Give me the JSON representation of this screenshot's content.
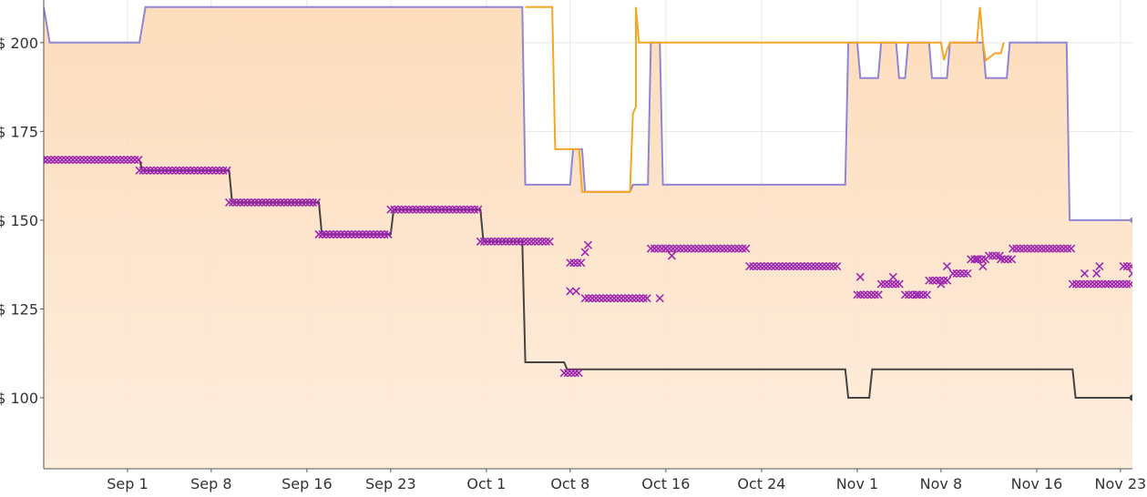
{
  "chart_data": {
    "type": "line",
    "title": "",
    "xlabel": "",
    "ylabel": "",
    "x_range": [
      "2023-08-25",
      "2023-11-24"
    ],
    "ylim": [
      80,
      212
    ],
    "grid": true,
    "x_ticks": [
      {
        "date": "2023-09-01",
        "label": "Sep 1"
      },
      {
        "date": "2023-09-08",
        "label": "Sep 8"
      },
      {
        "date": "2023-09-16",
        "label": "Sep 16"
      },
      {
        "date": "2023-09-23",
        "label": "Sep 23"
      },
      {
        "date": "2023-10-01",
        "label": "Oct 1"
      },
      {
        "date": "2023-10-08",
        "label": "Oct 8"
      },
      {
        "date": "2023-10-16",
        "label": "Oct 16"
      },
      {
        "date": "2023-10-24",
        "label": "Oct 24"
      },
      {
        "date": "2023-11-01",
        "label": "Nov 1"
      },
      {
        "date": "2023-11-08",
        "label": "Nov 8"
      },
      {
        "date": "2023-11-16",
        "label": "Nov 16"
      },
      {
        "date": "2023-11-23",
        "label": "Nov 23"
      }
    ],
    "y_ticks": [
      {
        "value": 100,
        "label": "$ 100"
      },
      {
        "value": 125,
        "label": "$ 125"
      },
      {
        "value": 150,
        "label": "$ 150"
      },
      {
        "value": 175,
        "label": "$ 175"
      },
      {
        "value": 200,
        "label": "$ 200"
      }
    ],
    "colors": {
      "area_fill_top": "#fdd9b5",
      "area_fill_bottom": "#fdebd9",
      "area_line": "#8f86d6",
      "orange_line": "#f5a623",
      "dark_line": "#444444",
      "markers": "#9c27b0",
      "grid": "#e6e6e6"
    },
    "series": [
      {
        "kind": "area-step",
        "points": [
          [
            "2023-08-25",
            210
          ],
          [
            "2023-08-25 12:00",
            200
          ],
          [
            "2023-09-02",
            200
          ],
          [
            "2023-09-02 12:00",
            210
          ],
          [
            "2023-10-04",
            210
          ],
          [
            "2023-10-04 06:00",
            160
          ],
          [
            "2023-10-08",
            160
          ],
          [
            "2023-10-08 06:00",
            170
          ],
          [
            "2023-10-09",
            170
          ],
          [
            "2023-10-09 06:00",
            158
          ],
          [
            "2023-10-13",
            158
          ],
          [
            "2023-10-13 06:00",
            160
          ],
          [
            "2023-10-14 12:00",
            160
          ],
          [
            "2023-10-14 18:00",
            200
          ],
          [
            "2023-10-15 12:00",
            200
          ],
          [
            "2023-10-15 18:00",
            160
          ],
          [
            "2023-10-31",
            160
          ],
          [
            "2023-10-31 06:00",
            200
          ],
          [
            "2023-11-01",
            200
          ],
          [
            "2023-11-01 06:00",
            190
          ],
          [
            "2023-11-02 18:00",
            190
          ],
          [
            "2023-11-03",
            200
          ],
          [
            "2023-11-04 06:00",
            200
          ],
          [
            "2023-11-04 12:00",
            190
          ],
          [
            "2023-11-05",
            190
          ],
          [
            "2023-11-05 06:00",
            200
          ],
          [
            "2023-11-07",
            200
          ],
          [
            "2023-11-07 06:00",
            190
          ],
          [
            "2023-11-08 12:00",
            190
          ],
          [
            "2023-11-08 18:00",
            200
          ],
          [
            "2023-11-11 12:00",
            200
          ],
          [
            "2023-11-11 18:00",
            190
          ],
          [
            "2023-11-13 12:00",
            190
          ],
          [
            "2023-11-13 18:00",
            200
          ],
          [
            "2023-11-18 12:00",
            200
          ],
          [
            "2023-11-18 18:00",
            150
          ],
          [
            "2023-11-24",
            150
          ]
        ]
      },
      {
        "kind": "line-step",
        "points": [
          [
            "2023-10-04 06:00",
            210
          ],
          [
            "2023-10-06 12:00",
            210
          ],
          [
            "2023-10-06 18:00",
            170
          ],
          [
            "2023-10-08 18:00",
            170
          ],
          [
            "2023-10-09",
            158
          ],
          [
            "2023-10-13",
            158
          ],
          [
            "2023-10-13 06:00",
            180
          ],
          [
            "2023-10-13 12:00",
            182
          ],
          [
            "2023-10-13 12:00",
            210
          ],
          [
            "2023-10-13 18:00",
            200
          ],
          [
            "2023-11-08",
            200
          ],
          [
            "2023-11-08 06:00",
            195
          ],
          [
            "2023-11-08 12:00",
            198
          ],
          [
            "2023-11-08 18:00",
            200
          ],
          [
            "2023-11-11",
            200
          ],
          [
            "2023-11-11 06:00",
            210
          ],
          [
            "2023-11-11 12:00",
            200
          ],
          [
            "2023-11-11 18:00",
            195
          ],
          [
            "2023-11-12 12:00",
            197
          ],
          [
            "2023-11-13",
            197
          ],
          [
            "2023-11-13 06:00",
            200
          ]
        ]
      },
      {
        "kind": "line-step",
        "points": [
          [
            "2023-09-02",
            167
          ],
          [
            "2023-09-02 06:00",
            164
          ],
          [
            "2023-09-09 12:00",
            164
          ],
          [
            "2023-09-09 18:00",
            155
          ],
          [
            "2023-09-17",
            155
          ],
          [
            "2023-09-17 06:00",
            146
          ],
          [
            "2023-09-23",
            146
          ],
          [
            "2023-09-23 06:00",
            153
          ],
          [
            "2023-09-30 12:00",
            153
          ],
          [
            "2023-09-30 18:00",
            144
          ],
          [
            "2023-10-04",
            144
          ],
          [
            "2023-10-04 06:00",
            110
          ],
          [
            "2023-10-07 12:00",
            110
          ],
          [
            "2023-10-07 18:00",
            108
          ],
          [
            "2023-10-31",
            108
          ],
          [
            "2023-10-31 06:00",
            100
          ],
          [
            "2023-11-02",
            100
          ],
          [
            "2023-11-02 06:00",
            108
          ],
          [
            "2023-11-19",
            108
          ],
          [
            "2023-11-19 06:00",
            100
          ],
          [
            "2023-11-24",
            100
          ]
        ]
      },
      {
        "kind": "markers",
        "segments": [
          {
            "from": "2023-08-25",
            "to": "2023-09-02",
            "y": 167
          },
          {
            "from": "2023-09-02",
            "to": "2023-09-09 12:00",
            "y": 164
          },
          {
            "from": "2023-09-09 12:00",
            "to": "2023-09-17",
            "y": 155
          },
          {
            "from": "2023-09-17",
            "to": "2023-09-23",
            "y": 146
          },
          {
            "from": "2023-09-23",
            "to": "2023-09-30 12:00",
            "y": 153
          },
          {
            "from": "2023-09-30 12:00",
            "to": "2023-10-06 12:00",
            "y": 144
          },
          {
            "from": "2023-10-07 12:00",
            "to": "2023-10-09",
            "y": 107
          },
          {
            "from": "2023-10-08",
            "to": "2023-10-09",
            "y": 138
          },
          {
            "from": "2023-10-09 06:00",
            "to": "2023-10-14 12:00",
            "y": 128
          },
          {
            "from": "2023-10-14 18:00",
            "to": "2023-10-16",
            "y": 142
          },
          {
            "from": "2023-10-16",
            "to": "2023-10-23",
            "y": 142
          },
          {
            "from": "2023-10-23",
            "to": "2023-10-30 12:00",
            "y": 137
          },
          {
            "from": "2023-11-01 06:00",
            "to": "2023-11-03",
            "y": 129
          },
          {
            "from": "2023-11-03",
            "to": "2023-11-04 18:00",
            "y": 132
          },
          {
            "from": "2023-11-05",
            "to": "2023-11-07",
            "y": 129
          },
          {
            "from": "2023-11-07",
            "to": "2023-11-08 18:00",
            "y": 133
          },
          {
            "from": "2023-11-09",
            "to": "2023-11-10 12:00",
            "y": 135
          },
          {
            "from": "2023-11-10 12:00",
            "to": "2023-11-12",
            "y": 139
          },
          {
            "from": "2023-11-12",
            "to": "2023-11-13",
            "y": 140
          },
          {
            "from": "2023-11-13",
            "to": "2023-11-14",
            "y": 139
          },
          {
            "from": "2023-11-14",
            "to": "2023-11-19",
            "y": 142
          },
          {
            "from": "2023-11-19",
            "to": "2023-11-22",
            "y": 132
          },
          {
            "from": "2023-11-22",
            "to": "2023-11-24",
            "y": 132
          },
          {
            "from": "2023-11-23 06:00",
            "to": "2023-11-24",
            "y": 137
          }
        ],
        "points": [
          [
            "2023-10-08",
            130
          ],
          [
            "2023-10-08 12:00",
            130
          ],
          [
            "2023-10-09 06:00",
            141
          ],
          [
            "2023-10-09 12:00",
            143
          ],
          [
            "2023-10-15 12:00",
            128
          ],
          [
            "2023-10-16 12:00",
            140
          ],
          [
            "2023-11-01",
            129
          ],
          [
            "2023-11-01 06:00",
            134
          ],
          [
            "2023-11-04",
            134
          ],
          [
            "2023-11-06",
            129
          ],
          [
            "2023-11-08",
            132
          ],
          [
            "2023-11-08 12:00",
            137
          ],
          [
            "2023-11-11",
            139
          ],
          [
            "2023-11-11 12:00",
            137
          ],
          [
            "2023-11-20",
            135
          ],
          [
            "2023-11-21",
            135
          ],
          [
            "2023-11-21 06:00",
            137
          ],
          [
            "2023-11-24",
            135
          ]
        ]
      }
    ]
  }
}
